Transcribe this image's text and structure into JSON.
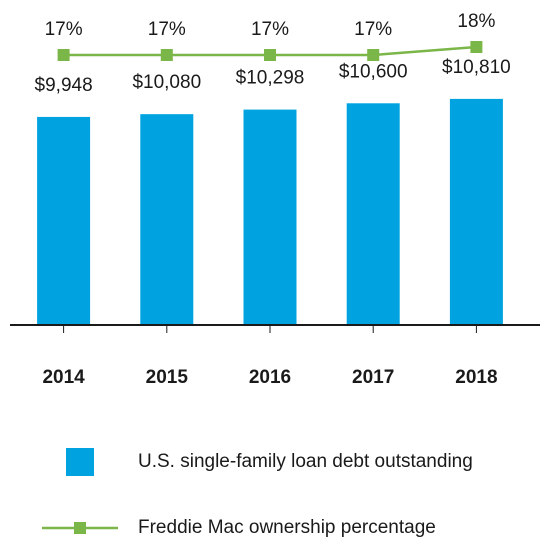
{
  "chart_data": {
    "type": "bar",
    "categories": [
      "2014",
      "2015",
      "2016",
      "2017",
      "2018"
    ],
    "series": [
      {
        "name": "U.S. single-family loan debt outstanding",
        "type": "bar",
        "color": "#00a3e0",
        "values": [
          9948,
          10080,
          10298,
          10600,
          10810
        ],
        "value_labels": [
          "$9,948",
          "$10,080",
          "$10,298",
          "$10,600",
          "$10,810"
        ]
      },
      {
        "name": "Freddie Mac ownership percentage",
        "type": "line",
        "color": "#7ab648",
        "axis": "y2",
        "values": [
          17,
          17,
          17,
          17,
          18
        ],
        "value_labels": [
          "17%",
          "17%",
          "17%",
          "17%",
          "18%"
        ]
      }
    ],
    "ylim": [
      0,
      12000
    ],
    "y2lim": [
      10,
      20
    ]
  }
}
